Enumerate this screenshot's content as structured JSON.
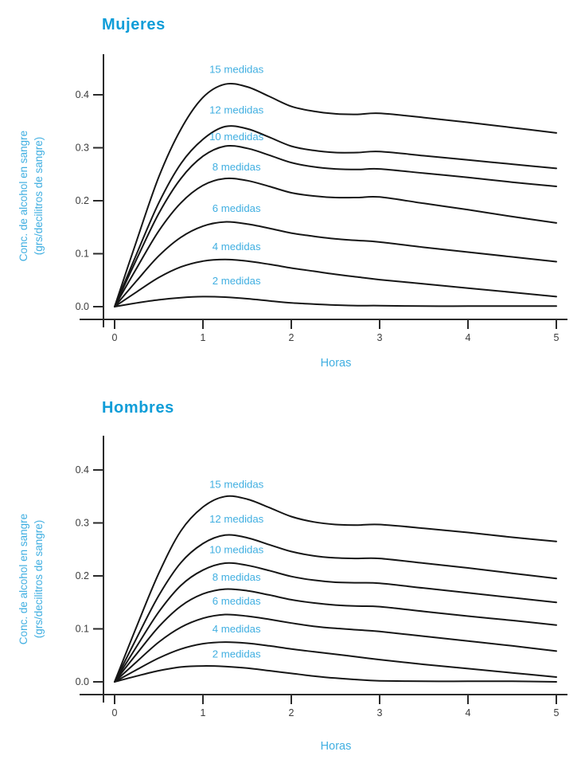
{
  "colors": {
    "title": "#0f9dd8",
    "series_label": "#41afe1",
    "tick_text": "#3d3d3d",
    "curve": "#161616",
    "axis": "#2b2b2b",
    "background": "#ffffff"
  },
  "chart_data": [
    {
      "type": "line",
      "title": "Mujeres",
      "xlabel": "Horas",
      "ylabel_line1": "Conc. de alcohol en sangre",
      "ylabel_line2": "(grs/decilitros de sangre)",
      "xlim": [
        0,
        5
      ],
      "ylim": [
        0,
        0.45
      ],
      "grid": false,
      "legend": "inline-labels-above-curves",
      "x_ticks": [
        {
          "v": 0,
          "label": "0"
        },
        {
          "v": 1,
          "label": "1"
        },
        {
          "v": 2,
          "label": "2"
        },
        {
          "v": 3,
          "label": "3"
        },
        {
          "v": 4,
          "label": "4"
        },
        {
          "v": 5,
          "label": "5"
        }
      ],
      "y_ticks": [
        {
          "v": 0.0,
          "label": "0.0"
        },
        {
          "v": 0.1,
          "label": "0.1"
        },
        {
          "v": 0.2,
          "label": "0.2"
        },
        {
          "v": 0.3,
          "label": "0.3"
        },
        {
          "v": 0.4,
          "label": "0.4"
        }
      ],
      "x": [
        0,
        0.25,
        0.5,
        0.75,
        1,
        1.25,
        1.5,
        1.75,
        2,
        2.25,
        2.5,
        2.75,
        3,
        3.5,
        4,
        4.5,
        5
      ],
      "series": [
        {
          "name": "15 medidas",
          "label_y": 0.447,
          "values": [
            0,
            0.125,
            0.245,
            0.335,
            0.395,
            0.42,
            0.415,
            0.397,
            0.378,
            0.369,
            0.364,
            0.363,
            0.365,
            0.357,
            0.348,
            0.338,
            0.328
          ]
        },
        {
          "name": "12 medidas",
          "label_y": 0.371,
          "values": [
            0,
            0.1,
            0.196,
            0.27,
            0.316,
            0.34,
            0.336,
            0.32,
            0.303,
            0.295,
            0.291,
            0.291,
            0.293,
            0.285,
            0.277,
            0.269,
            0.261
          ]
        },
        {
          "name": "10 medidas",
          "label_y": 0.32,
          "values": [
            0,
            0.09,
            0.176,
            0.242,
            0.284,
            0.303,
            0.299,
            0.286,
            0.272,
            0.264,
            0.26,
            0.259,
            0.26,
            0.252,
            0.244,
            0.235,
            0.227
          ]
        },
        {
          "name": "8 medidas",
          "label_y": 0.263,
          "values": [
            0,
            0.073,
            0.143,
            0.196,
            0.229,
            0.242,
            0.238,
            0.227,
            0.215,
            0.209,
            0.206,
            0.206,
            0.207,
            0.195,
            0.183,
            0.17,
            0.158
          ]
        },
        {
          "name": "6 medidas",
          "label_y": 0.185,
          "values": [
            0,
            0.049,
            0.096,
            0.131,
            0.152,
            0.16,
            0.156,
            0.148,
            0.139,
            0.133,
            0.128,
            0.125,
            0.122,
            0.112,
            0.103,
            0.094,
            0.085
          ]
        },
        {
          "name": "4 medidas",
          "label_y": 0.113,
          "values": [
            0,
            0.028,
            0.055,
            0.075,
            0.086,
            0.089,
            0.086,
            0.08,
            0.073,
            0.067,
            0.061,
            0.056,
            0.051,
            0.043,
            0.035,
            0.027,
            0.019
          ]
        },
        {
          "name": "2 medidas",
          "label_y": 0.048,
          "values": [
            0,
            0.007,
            0.013,
            0.017,
            0.019,
            0.018,
            0.015,
            0.011,
            0.007,
            0.005,
            0.003,
            0.002,
            0.002,
            0.001,
            0.001,
            0.001,
            0.001
          ]
        }
      ]
    },
    {
      "type": "line",
      "title": "Hombres",
      "xlabel": "Horas",
      "ylabel_line1": "Conc. de alcohol en sangre",
      "ylabel_line2": "(grs/decilitros de sangre)",
      "xlim": [
        0,
        5
      ],
      "ylim": [
        0,
        0.45
      ],
      "grid": false,
      "legend": "inline-labels-above-curves",
      "x_ticks": [
        {
          "v": 0,
          "label": "0"
        },
        {
          "v": 1,
          "label": "1"
        },
        {
          "v": 2,
          "label": "2"
        },
        {
          "v": 3,
          "label": "3"
        },
        {
          "v": 4,
          "label": "4"
        },
        {
          "v": 5,
          "label": "5"
        }
      ],
      "y_ticks": [
        {
          "v": 0.0,
          "label": "0.0"
        },
        {
          "v": 0.1,
          "label": "0.1"
        },
        {
          "v": 0.2,
          "label": "0.2"
        },
        {
          "v": 0.3,
          "label": "0.3"
        },
        {
          "v": 0.4,
          "label": "0.4"
        }
      ],
      "x": [
        0,
        0.25,
        0.5,
        0.75,
        1,
        1.25,
        1.5,
        1.75,
        2,
        2.25,
        2.5,
        2.75,
        3,
        3.5,
        4,
        4.5,
        5
      ],
      "series": [
        {
          "name": "15 medidas",
          "label_y": 0.372,
          "values": [
            0,
            0.105,
            0.205,
            0.285,
            0.33,
            0.35,
            0.345,
            0.329,
            0.312,
            0.302,
            0.297,
            0.296,
            0.297,
            0.29,
            0.282,
            0.273,
            0.265
          ]
        },
        {
          "name": "12 medidas",
          "label_y": 0.307,
          "values": [
            0,
            0.083,
            0.163,
            0.225,
            0.261,
            0.277,
            0.272,
            0.259,
            0.246,
            0.238,
            0.234,
            0.233,
            0.233,
            0.224,
            0.215,
            0.205,
            0.195
          ]
        },
        {
          "name": "10 medidas",
          "label_y": 0.249,
          "values": [
            0,
            0.067,
            0.132,
            0.182,
            0.211,
            0.224,
            0.22,
            0.21,
            0.199,
            0.192,
            0.188,
            0.187,
            0.186,
            0.177,
            0.168,
            0.159,
            0.15
          ]
        },
        {
          "name": "8 medidas",
          "label_y": 0.197,
          "values": [
            0,
            0.053,
            0.104,
            0.143,
            0.166,
            0.175,
            0.172,
            0.164,
            0.155,
            0.149,
            0.145,
            0.143,
            0.142,
            0.133,
            0.124,
            0.116,
            0.107
          ]
        },
        {
          "name": "6 medidas",
          "label_y": 0.152,
          "values": [
            0,
            0.038,
            0.075,
            0.103,
            0.12,
            0.127,
            0.124,
            0.118,
            0.111,
            0.105,
            0.101,
            0.098,
            0.095,
            0.086,
            0.077,
            0.068,
            0.058
          ]
        },
        {
          "name": "4 medidas",
          "label_y": 0.099,
          "values": [
            0,
            0.023,
            0.045,
            0.062,
            0.072,
            0.075,
            0.073,
            0.068,
            0.062,
            0.057,
            0.052,
            0.047,
            0.042,
            0.033,
            0.025,
            0.017,
            0.009
          ]
        },
        {
          "name": "2 medidas",
          "label_y": 0.052,
          "values": [
            0,
            0.011,
            0.021,
            0.028,
            0.03,
            0.029,
            0.026,
            0.021,
            0.016,
            0.011,
            0.007,
            0.004,
            0.002,
            0.001,
            0.001,
            0.001,
            0.0
          ]
        }
      ]
    }
  ]
}
